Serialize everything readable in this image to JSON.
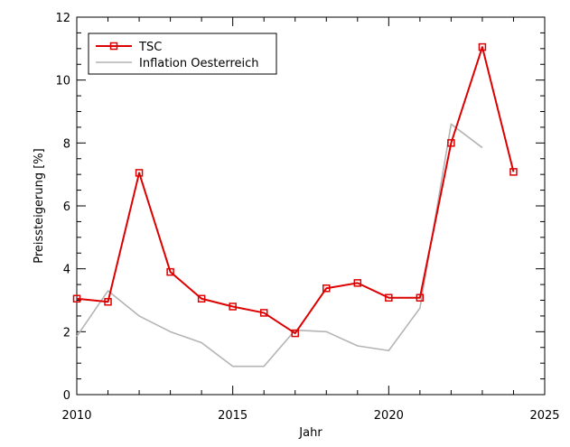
{
  "chart_data": {
    "type": "line",
    "title": "",
    "xlabel": "Jahr",
    "ylabel": "Preissteigerung [%]",
    "xlim": [
      2010,
      2025
    ],
    "ylim": [
      0,
      12
    ],
    "xticks": [
      2010,
      2015,
      2020,
      2025
    ],
    "yticks": [
      0,
      2,
      4,
      6,
      8,
      10,
      12
    ],
    "x_minor_step": 1,
    "y_minor_step": 0.5,
    "grid": false,
    "legend_position": "top-left",
    "series": [
      {
        "name": "TSC",
        "color": "#dd0000",
        "marker": "square",
        "x": [
          2010,
          2011,
          2012,
          2013,
          2014,
          2015,
          2016,
          2017,
          2018,
          2019,
          2020,
          2021,
          2022,
          2023,
          2024
        ],
        "values": [
          3.05,
          2.95,
          7.05,
          3.9,
          3.05,
          2.8,
          2.6,
          1.95,
          3.38,
          3.55,
          3.08,
          3.08,
          8.0,
          11.05,
          7.08
        ]
      },
      {
        "name": "Inflation Oesterreich",
        "color": "#b4b4b4",
        "marker": "none",
        "x": [
          2010,
          2011,
          2012,
          2013,
          2014,
          2015,
          2016,
          2017,
          2018,
          2019,
          2020,
          2021,
          2022,
          2023
        ],
        "values": [
          1.85,
          3.3,
          2.5,
          2.0,
          1.65,
          0.9,
          0.9,
          2.05,
          2.0,
          1.55,
          1.4,
          2.75,
          8.6,
          7.85
        ]
      }
    ]
  }
}
